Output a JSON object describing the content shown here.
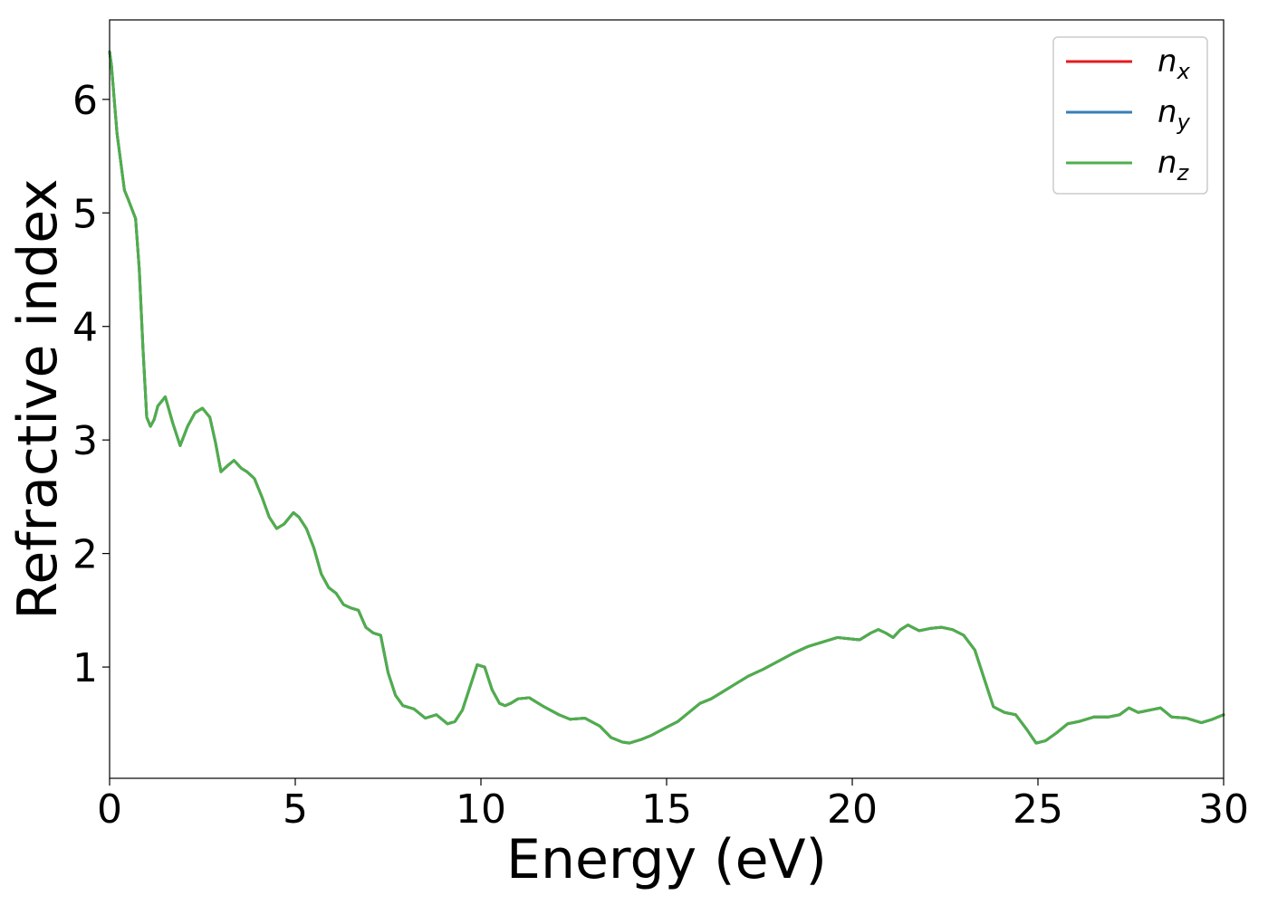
{
  "chart_data": {
    "type": "line",
    "xlabel": "Energy (eV)",
    "ylabel": "Refractive index",
    "xlim": [
      0,
      30
    ],
    "ylim": [
      0.02,
      6.7
    ],
    "xticks": [
      0,
      5,
      10,
      15,
      20,
      25,
      30
    ],
    "xtick_labels": [
      "0",
      "5",
      "10",
      "15",
      "20",
      "25",
      "30"
    ],
    "yticks": [
      1,
      2,
      3,
      4,
      5,
      6
    ],
    "ytick_labels": [
      "1",
      "2",
      "3",
      "4",
      "5",
      "6"
    ],
    "grid": false,
    "legend_position": "top-right",
    "x": [
      0,
      0.05,
      0.2,
      0.4,
      0.5,
      0.7,
      0.8,
      0.9,
      1.0,
      1.1,
      1.2,
      1.3,
      1.5,
      1.7,
      1.9,
      2.1,
      2.3,
      2.5,
      2.7,
      2.85,
      3.0,
      3.2,
      3.35,
      3.55,
      3.7,
      3.9,
      4.1,
      4.3,
      4.5,
      4.7,
      4.95,
      5.1,
      5.3,
      5.5,
      5.7,
      5.9,
      6.1,
      6.3,
      6.5,
      6.7,
      6.9,
      7.1,
      7.3,
      7.5,
      7.7,
      7.9,
      8.2,
      8.5,
      8.8,
      9.1,
      9.3,
      9.5,
      9.7,
      9.9,
      10.1,
      10.3,
      10.5,
      10.65,
      10.8,
      11.0,
      11.3,
      11.7,
      12.1,
      12.4,
      12.8,
      13.2,
      13.5,
      13.8,
      14.0,
      14.3,
      14.6,
      15.0,
      15.3,
      15.6,
      15.9,
      16.2,
      16.5,
      16.8,
      17.2,
      17.6,
      18.0,
      18.4,
      18.8,
      19.2,
      19.6,
      19.9,
      20.2,
      20.5,
      20.7,
      20.9,
      21.1,
      21.3,
      21.5,
      21.8,
      22.1,
      22.4,
      22.7,
      23.0,
      23.3,
      23.6,
      23.8,
      24.1,
      24.4,
      24.7,
      24.95,
      25.2,
      25.5,
      25.8,
      26.1,
      26.5,
      26.9,
      27.2,
      27.45,
      27.7,
      28.0,
      28.3,
      28.6,
      29.0,
      29.4,
      29.7,
      30.0
    ],
    "series": [
      {
        "name": "n",
        "subscript": "x",
        "color": "#e41a1c",
        "values": [
          6.42,
          6.3,
          5.7,
          5.2,
          5.12,
          4.95,
          4.5,
          3.8,
          3.2,
          3.12,
          3.18,
          3.3,
          3.38,
          3.15,
          2.95,
          3.12,
          3.24,
          3.28,
          3.2,
          2.98,
          2.72,
          2.78,
          2.82,
          2.75,
          2.72,
          2.66,
          2.5,
          2.32,
          2.22,
          2.26,
          2.36,
          2.32,
          2.22,
          2.05,
          1.82,
          1.7,
          1.65,
          1.55,
          1.52,
          1.5,
          1.35,
          1.3,
          1.28,
          0.95,
          0.75,
          0.66,
          0.63,
          0.55,
          0.58,
          0.5,
          0.52,
          0.62,
          0.82,
          1.02,
          1.0,
          0.8,
          0.68,
          0.66,
          0.68,
          0.72,
          0.73,
          0.65,
          0.58,
          0.54,
          0.55,
          0.48,
          0.38,
          0.34,
          0.33,
          0.36,
          0.4,
          0.47,
          0.52,
          0.6,
          0.68,
          0.72,
          0.78,
          0.84,
          0.92,
          0.98,
          1.05,
          1.12,
          1.18,
          1.22,
          1.26,
          1.25,
          1.24,
          1.3,
          1.33,
          1.3,
          1.26,
          1.33,
          1.37,
          1.32,
          1.34,
          1.35,
          1.33,
          1.28,
          1.15,
          0.85,
          0.65,
          0.6,
          0.58,
          0.45,
          0.33,
          0.35,
          0.42,
          0.5,
          0.52,
          0.56,
          0.56,
          0.58,
          0.64,
          0.6,
          0.62,
          0.64,
          0.56,
          0.55,
          0.51,
          0.54,
          0.58
        ]
      },
      {
        "name": "n",
        "subscript": "y",
        "color": "#377eb8",
        "values": [
          6.42,
          6.3,
          5.7,
          5.2,
          5.12,
          4.95,
          4.5,
          3.8,
          3.2,
          3.12,
          3.18,
          3.3,
          3.38,
          3.15,
          2.95,
          3.12,
          3.24,
          3.28,
          3.2,
          2.98,
          2.72,
          2.78,
          2.82,
          2.75,
          2.72,
          2.66,
          2.5,
          2.32,
          2.22,
          2.26,
          2.36,
          2.32,
          2.22,
          2.05,
          1.82,
          1.7,
          1.65,
          1.55,
          1.52,
          1.5,
          1.35,
          1.3,
          1.28,
          0.95,
          0.75,
          0.66,
          0.63,
          0.55,
          0.58,
          0.5,
          0.52,
          0.62,
          0.82,
          1.02,
          1.0,
          0.8,
          0.68,
          0.66,
          0.68,
          0.72,
          0.73,
          0.65,
          0.58,
          0.54,
          0.55,
          0.48,
          0.38,
          0.34,
          0.33,
          0.36,
          0.4,
          0.47,
          0.52,
          0.6,
          0.68,
          0.72,
          0.78,
          0.84,
          0.92,
          0.98,
          1.05,
          1.12,
          1.18,
          1.22,
          1.26,
          1.25,
          1.24,
          1.3,
          1.33,
          1.3,
          1.26,
          1.33,
          1.37,
          1.32,
          1.34,
          1.35,
          1.33,
          1.28,
          1.15,
          0.85,
          0.65,
          0.6,
          0.58,
          0.45,
          0.33,
          0.35,
          0.42,
          0.5,
          0.52,
          0.56,
          0.56,
          0.58,
          0.64,
          0.6,
          0.62,
          0.64,
          0.56,
          0.55,
          0.51,
          0.54,
          0.58
        ]
      },
      {
        "name": "n",
        "subscript": "z",
        "color": "#4daf4a",
        "values": [
          6.42,
          6.3,
          5.7,
          5.2,
          5.12,
          4.95,
          4.5,
          3.8,
          3.2,
          3.12,
          3.18,
          3.3,
          3.38,
          3.15,
          2.95,
          3.12,
          3.24,
          3.28,
          3.2,
          2.98,
          2.72,
          2.78,
          2.82,
          2.75,
          2.72,
          2.66,
          2.5,
          2.32,
          2.22,
          2.26,
          2.36,
          2.32,
          2.22,
          2.05,
          1.82,
          1.7,
          1.65,
          1.55,
          1.52,
          1.5,
          1.35,
          1.3,
          1.28,
          0.95,
          0.75,
          0.66,
          0.63,
          0.55,
          0.58,
          0.5,
          0.52,
          0.62,
          0.82,
          1.02,
          1.0,
          0.8,
          0.68,
          0.66,
          0.68,
          0.72,
          0.73,
          0.65,
          0.58,
          0.54,
          0.55,
          0.48,
          0.38,
          0.34,
          0.33,
          0.36,
          0.4,
          0.47,
          0.52,
          0.6,
          0.68,
          0.72,
          0.78,
          0.84,
          0.92,
          0.98,
          1.05,
          1.12,
          1.18,
          1.22,
          1.26,
          1.25,
          1.24,
          1.3,
          1.33,
          1.3,
          1.26,
          1.33,
          1.37,
          1.32,
          1.34,
          1.35,
          1.33,
          1.28,
          1.15,
          0.85,
          0.65,
          0.6,
          0.58,
          0.45,
          0.33,
          0.35,
          0.42,
          0.5,
          0.52,
          0.56,
          0.56,
          0.58,
          0.64,
          0.6,
          0.62,
          0.64,
          0.56,
          0.55,
          0.51,
          0.54,
          0.58
        ]
      }
    ]
  }
}
